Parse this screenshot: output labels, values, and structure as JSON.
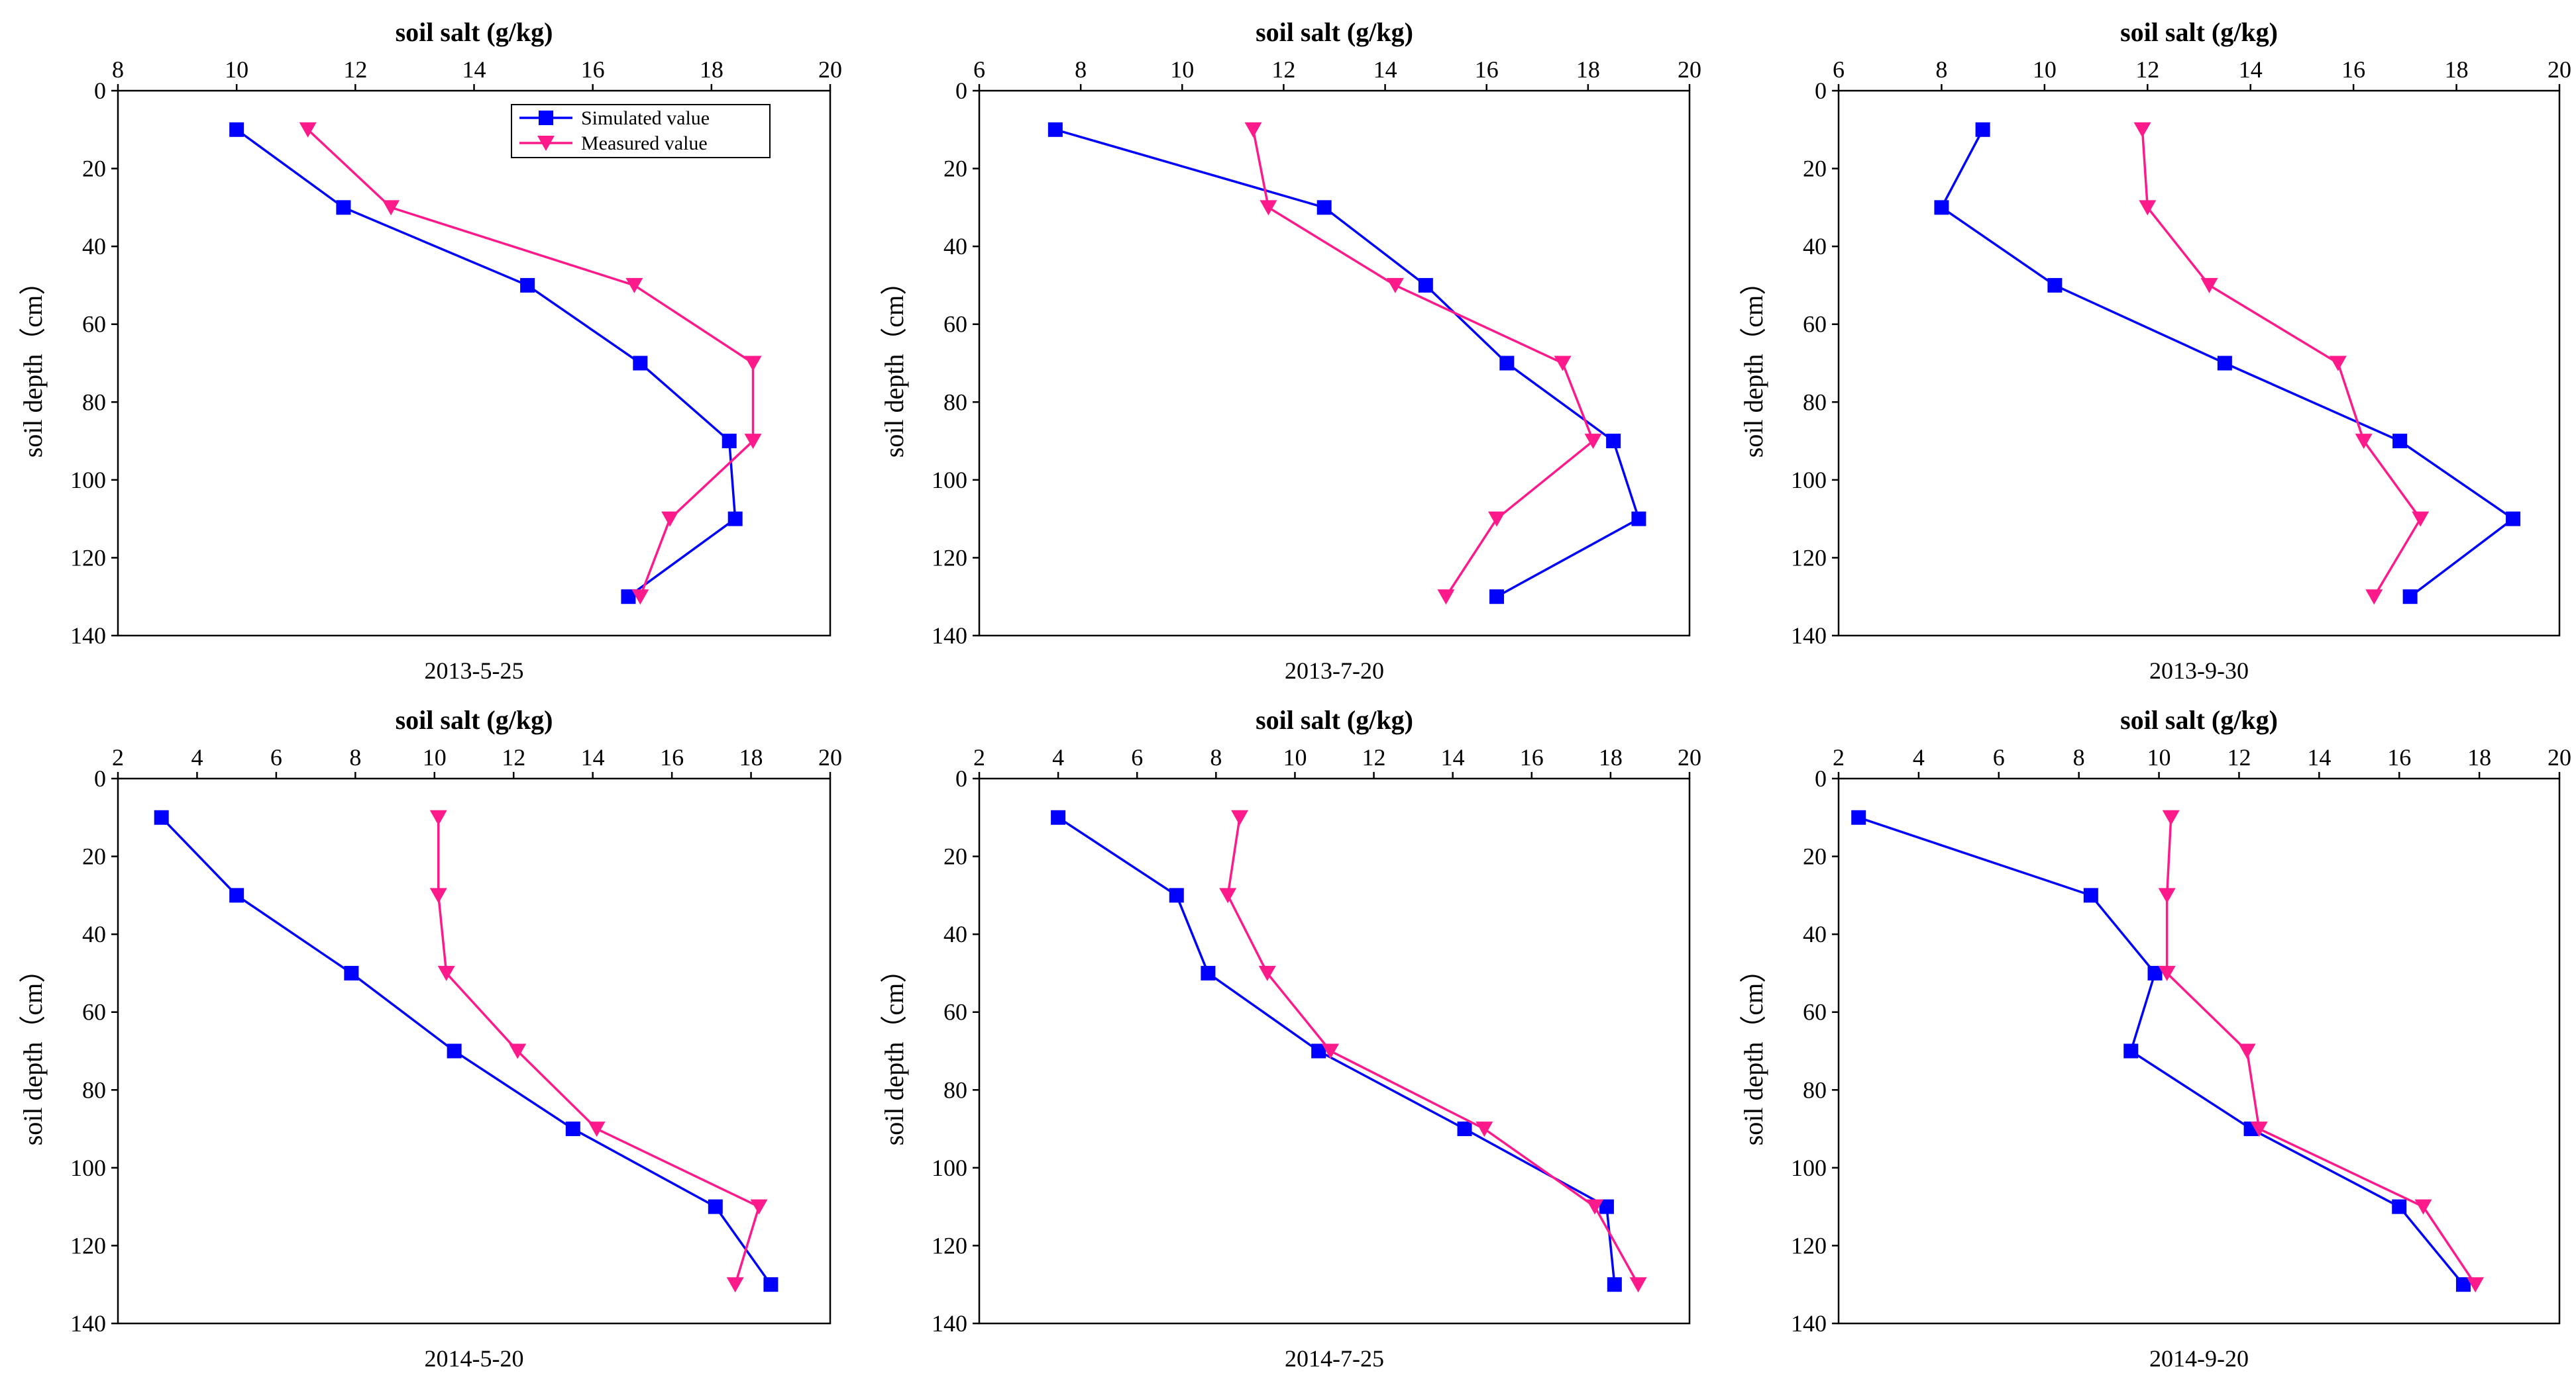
{
  "figure": {
    "legend": {
      "simulated_label": "Simulated value",
      "measured_label": "Measured value",
      "placement": "top-right-of-first-panel"
    },
    "colors": {
      "simulated": "#0000ff",
      "measured": "#ff1a8c",
      "axis": "#000000"
    }
  },
  "chart_data": [
    {
      "type": "line",
      "title": "soil salt (g/kg)",
      "date": "2013-5-25",
      "xlabel": "soil salt (g/kg)",
      "ylabel": "soil depth（cm）",
      "xlim": [
        8,
        20
      ],
      "xticks": [
        8,
        10,
        12,
        14,
        16,
        18,
        20
      ],
      "ylim": [
        0,
        140
      ],
      "yticks": [
        0,
        20,
        40,
        60,
        80,
        100,
        120,
        140
      ],
      "depth": [
        10,
        30,
        50,
        70,
        90,
        110,
        130
      ],
      "series": [
        {
          "name": "Simulated value",
          "values": [
            10.0,
            11.8,
            14.9,
            16.8,
            18.3,
            18.4,
            16.6
          ]
        },
        {
          "name": "Measured value",
          "values": [
            11.2,
            12.6,
            16.7,
            18.7,
            18.7,
            17.3,
            16.8
          ]
        }
      ]
    },
    {
      "type": "line",
      "title": "soil salt (g/kg)",
      "date": "2013-7-20",
      "xlabel": "soil salt (g/kg)",
      "ylabel": "soil depth（cm）",
      "xlim": [
        6,
        20
      ],
      "xticks": [
        6,
        8,
        10,
        12,
        14,
        16,
        18,
        20
      ],
      "ylim": [
        0,
        140
      ],
      "yticks": [
        0,
        20,
        40,
        60,
        80,
        100,
        120,
        140
      ],
      "depth": [
        10,
        30,
        50,
        70,
        90,
        110,
        130
      ],
      "series": [
        {
          "name": "Simulated value",
          "values": [
            7.5,
            12.8,
            14.8,
            16.4,
            18.5,
            19.0,
            16.2
          ]
        },
        {
          "name": "Measured value",
          "values": [
            11.4,
            11.7,
            14.2,
            17.5,
            18.1,
            16.2,
            15.2
          ]
        }
      ]
    },
    {
      "type": "line",
      "title": "soil salt (g/kg)",
      "date": "2013-9-30",
      "xlabel": "soil salt (g/kg)",
      "ylabel": "soil depth（cm）",
      "xlim": [
        6,
        20
      ],
      "xticks": [
        6,
        8,
        10,
        12,
        14,
        16,
        18,
        20
      ],
      "ylim": [
        0,
        140
      ],
      "yticks": [
        0,
        20,
        40,
        60,
        80,
        100,
        120,
        140
      ],
      "depth": [
        10,
        30,
        50,
        70,
        90,
        110,
        130
      ],
      "series": [
        {
          "name": "Simulated value",
          "values": [
            8.8,
            8.0,
            10.2,
            13.5,
            16.9,
            19.1,
            17.1
          ]
        },
        {
          "name": "Measured value",
          "values": [
            11.9,
            12.0,
            13.2,
            15.7,
            16.2,
            17.3,
            16.4
          ]
        }
      ]
    },
    {
      "type": "line",
      "title": "soil salt (g/kg)",
      "date": "2014-5-20",
      "xlabel": "soil salt (g/kg)",
      "ylabel": "soil depth（cm）",
      "xlim": [
        2,
        20
      ],
      "xticks": [
        2,
        4,
        6,
        8,
        10,
        12,
        14,
        16,
        18,
        20
      ],
      "ylim": [
        0,
        140
      ],
      "yticks": [
        0,
        20,
        40,
        60,
        80,
        100,
        120,
        140
      ],
      "depth": [
        10,
        30,
        50,
        70,
        90,
        110,
        130
      ],
      "series": [
        {
          "name": "Simulated value",
          "values": [
            3.1,
            5.0,
            7.9,
            10.5,
            13.5,
            17.1,
            18.5
          ]
        },
        {
          "name": "Measured value",
          "values": [
            10.1,
            10.1,
            10.3,
            12.1,
            14.1,
            18.2,
            17.6
          ]
        }
      ]
    },
    {
      "type": "line",
      "title": "soil salt (g/kg)",
      "date": "2014-7-25",
      "xlabel": "soil salt (g/kg)",
      "ylabel": "soil depth（cm）",
      "xlim": [
        2,
        20
      ],
      "xticks": [
        2,
        4,
        6,
        8,
        10,
        12,
        14,
        16,
        18,
        20
      ],
      "ylim": [
        0,
        140
      ],
      "yticks": [
        0,
        20,
        40,
        60,
        80,
        100,
        120,
        140
      ],
      "depth": [
        10,
        30,
        50,
        70,
        90,
        110,
        130
      ],
      "series": [
        {
          "name": "Simulated value",
          "values": [
            4.0,
            7.0,
            7.8,
            10.6,
            14.3,
            17.9,
            18.1
          ]
        },
        {
          "name": "Measured value",
          "values": [
            8.6,
            8.3,
            9.3,
            10.9,
            14.8,
            17.6,
            18.7
          ]
        }
      ]
    },
    {
      "type": "line",
      "title": "soil salt (g/kg)",
      "date": "2014-9-20",
      "xlabel": "soil salt (g/kg)",
      "ylabel": "soil depth（cm）",
      "xlim": [
        2,
        20
      ],
      "xticks": [
        2,
        4,
        6,
        8,
        10,
        12,
        14,
        16,
        18,
        20
      ],
      "ylim": [
        0,
        140
      ],
      "yticks": [
        0,
        20,
        40,
        60,
        80,
        100,
        120,
        140
      ],
      "depth": [
        10,
        30,
        50,
        70,
        90,
        110,
        130
      ],
      "series": [
        {
          "name": "Simulated value",
          "values": [
            2.5,
            8.3,
            9.9,
            9.3,
            12.3,
            16.0,
            17.6
          ]
        },
        {
          "name": "Measured value",
          "values": [
            10.3,
            10.2,
            10.2,
            12.2,
            12.5,
            16.6,
            17.9
          ]
        }
      ]
    }
  ]
}
